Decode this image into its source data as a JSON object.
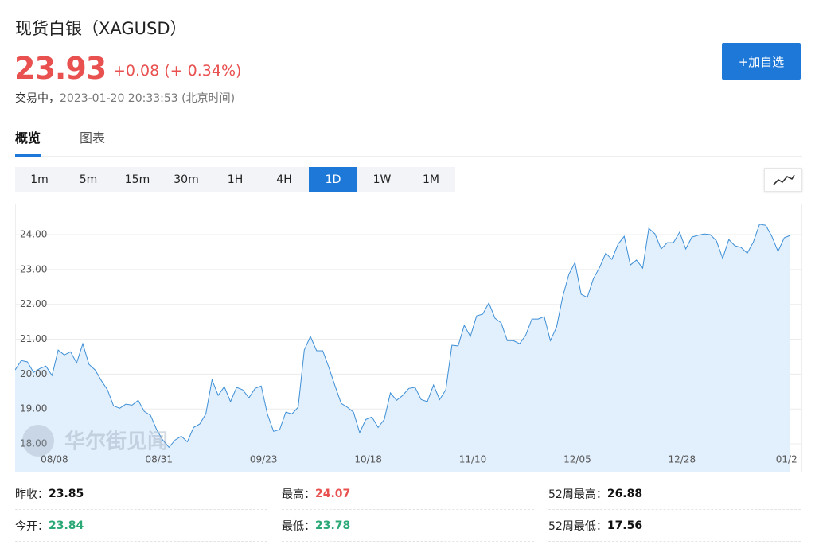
{
  "header": {
    "title": "现货白银（XAGUSD）",
    "price": 23.93,
    "change": "+0.08 (+ 0.34%)",
    "status": "交易中，",
    "timestamp": "2023-01-20 20:33:53",
    "timezone": "(北京时间)",
    "watchlist_button": "+加自选"
  },
  "tabs": [
    "概览",
    "图表"
  ],
  "active_tab": "概览",
  "periods": [
    "1m",
    "5m",
    "15m",
    "30m",
    "1H",
    "4H",
    "1D",
    "1W",
    "1M"
  ],
  "active_period": "1D",
  "chart_data": {
    "type": "line",
    "watermark": "华尔街见闻",
    "color": "#3d8fd6",
    "fill": "#e2effc",
    "grid": true,
    "categories": [
      null,
      null,
      null,
      null,
      null,
      null,
      "08/08",
      null,
      null,
      null,
      null,
      null,
      null,
      null,
      null,
      null,
      null,
      null,
      null,
      null,
      null,
      null,
      null,
      "08/31",
      null,
      null,
      null,
      null,
      null,
      null,
      null,
      null,
      null,
      null,
      null,
      null,
      null,
      null,
      null,
      null,
      "09/23",
      null,
      null,
      null,
      null,
      null,
      null,
      null,
      null,
      null,
      null,
      null,
      null,
      null,
      null,
      null,
      null,
      "10/18",
      null,
      null,
      null,
      null,
      null,
      null,
      null,
      null,
      null,
      null,
      null,
      null,
      null,
      null,
      null,
      null,
      "11/10",
      null,
      null,
      null,
      null,
      null,
      null,
      null,
      null,
      null,
      null,
      null,
      null,
      null,
      null,
      null,
      null,
      "12/05",
      null,
      null,
      null,
      null,
      null,
      null,
      null,
      null,
      null,
      null,
      null,
      null,
      null,
      null,
      null,
      null,
      "12/28",
      null,
      null,
      null,
      null,
      null,
      null,
      null,
      null,
      null,
      null,
      null,
      null,
      null,
      null,
      null,
      null,
      "01/2",
      null
    ],
    "values": [
      20.12,
      20.39,
      20.35,
      20.05,
      20.16,
      20.23,
      19.96,
      20.69,
      20.55,
      20.64,
      20.32,
      20.87,
      20.28,
      20.12,
      19.82,
      19.55,
      19.09,
      19.02,
      19.14,
      19.11,
      19.25,
      18.93,
      18.82,
      18.41,
      18.11,
      17.9,
      18.11,
      18.22,
      18.06,
      18.47,
      18.57,
      18.86,
      19.84,
      19.39,
      19.64,
      19.21,
      19.62,
      19.55,
      19.32,
      19.59,
      19.66,
      18.86,
      18.36,
      18.41,
      18.91,
      18.86,
      19.05,
      20.69,
      21.08,
      20.67,
      20.67,
      20.19,
      19.66,
      19.16,
      19.05,
      18.91,
      18.32,
      18.7,
      18.77,
      18.47,
      18.7,
      19.46,
      19.25,
      19.39,
      19.59,
      19.62,
      19.27,
      19.21,
      19.69,
      19.27,
      19.55,
      20.83,
      20.81,
      21.4,
      21.08,
      21.67,
      21.72,
      22.04,
      21.6,
      21.47,
      20.96,
      20.96,
      20.87,
      21.12,
      21.58,
      21.58,
      21.65,
      20.96,
      21.35,
      22.22,
      22.86,
      23.2,
      22.29,
      22.2,
      22.74,
      23.06,
      23.47,
      23.29,
      23.73,
      23.95,
      23.13,
      23.27,
      23.04,
      24.18,
      24.02,
      23.59,
      23.77,
      23.77,
      24.07,
      23.59,
      23.93,
      23.98,
      24.02,
      24,
      23.82,
      23.32,
      23.86,
      23.68,
      23.63,
      23.47,
      23.79,
      24.3,
      24.27,
      23.95,
      23.52,
      23.91,
      23.98
    ],
    "ylim": [
      17.18,
      24.89
    ],
    "yticks": [
      {
        "value": 18,
        "label": "18.00"
      },
      {
        "value": 19,
        "label": "19.00"
      },
      {
        "value": 20,
        "label": "20.00"
      },
      {
        "value": 21,
        "label": "21.00"
      },
      {
        "value": 22,
        "label": "22.00"
      },
      {
        "value": 23,
        "label": "23.00"
      },
      {
        "value": 24,
        "label": "24.00"
      }
    ]
  },
  "stats": [
    {
      "label": "昨收：",
      "value": 23.85,
      "color": "#111111"
    },
    {
      "label": "最高：",
      "value": 24.07,
      "color": "#e8514f"
    },
    {
      "label": "52周最高：",
      "value": 26.88,
      "color": "#111111"
    },
    {
      "label": "今开：",
      "value": 23.84,
      "color": "#2aa876"
    },
    {
      "label": "最低：",
      "value": 23.78,
      "color": "#2aa876"
    },
    {
      "label": "52周最低：",
      "value": 17.56,
      "color": "#111111"
    }
  ]
}
